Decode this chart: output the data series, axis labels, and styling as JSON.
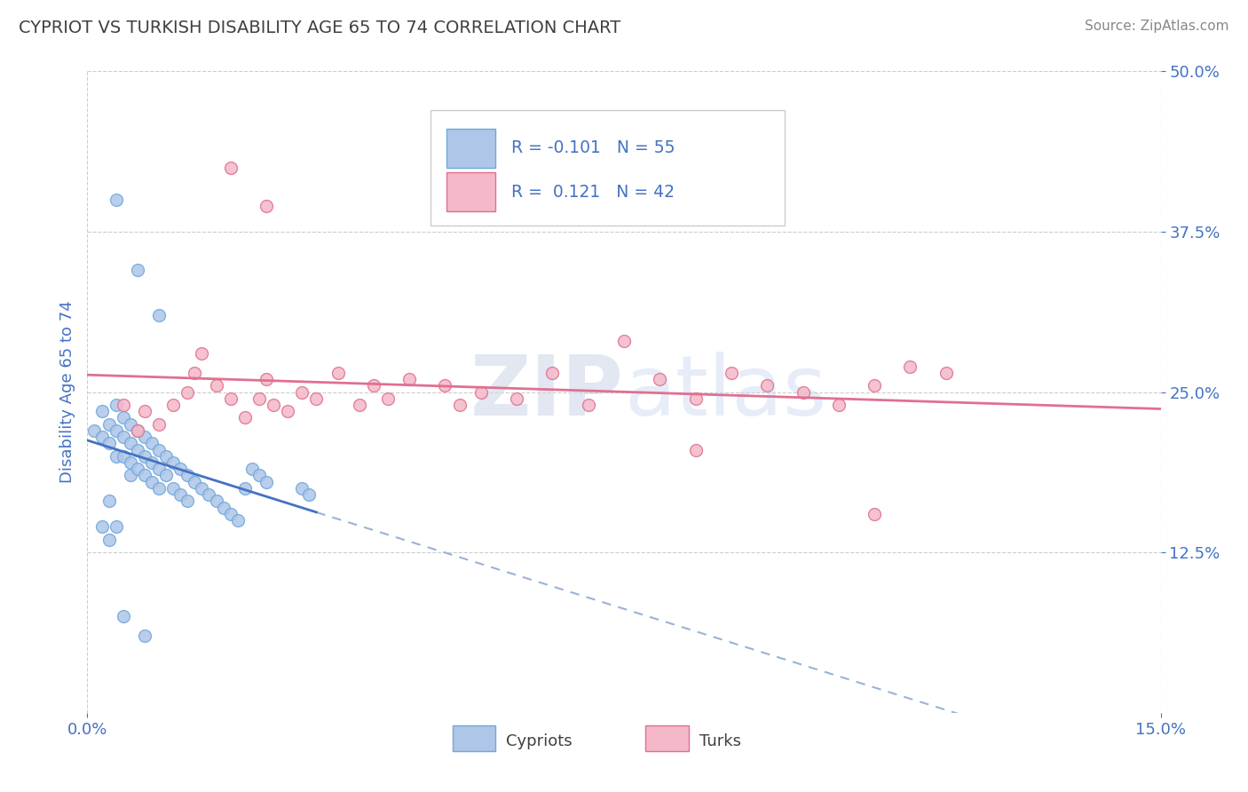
{
  "title": "CYPRIOT VS TURKISH DISABILITY AGE 65 TO 74 CORRELATION CHART",
  "source_text": "Source: ZipAtlas.com",
  "ylabel": "Disability Age 65 to 74",
  "xlim": [
    0.0,
    0.15
  ],
  "ylim": [
    0.0,
    0.5
  ],
  "cypriot_color": "#aec6e8",
  "cypriot_edge_color": "#6fa8dc",
  "turkish_color": "#f4b8c8",
  "turkish_edge_color": "#e07090",
  "cypriot_line_color": "#4472c4",
  "turkish_line_color": "#e07090",
  "dashed_line_color": "#9ab3d5",
  "background_color": "#ffffff",
  "grid_color": "#cccccc",
  "title_color": "#404040",
  "tick_color": "#4472c4",
  "watermark_color": "#d0d8e8",
  "cypriot_scatter": [
    [
      0.001,
      0.22
    ],
    [
      0.002,
      0.215
    ],
    [
      0.002,
      0.235
    ],
    [
      0.003,
      0.225
    ],
    [
      0.003,
      0.21
    ],
    [
      0.004,
      0.24
    ],
    [
      0.004,
      0.22
    ],
    [
      0.004,
      0.2
    ],
    [
      0.005,
      0.23
    ],
    [
      0.005,
      0.215
    ],
    [
      0.005,
      0.2
    ],
    [
      0.006,
      0.225
    ],
    [
      0.006,
      0.21
    ],
    [
      0.006,
      0.195
    ],
    [
      0.006,
      0.185
    ],
    [
      0.007,
      0.22
    ],
    [
      0.007,
      0.205
    ],
    [
      0.007,
      0.19
    ],
    [
      0.008,
      0.215
    ],
    [
      0.008,
      0.2
    ],
    [
      0.008,
      0.185
    ],
    [
      0.009,
      0.21
    ],
    [
      0.009,
      0.195
    ],
    [
      0.009,
      0.18
    ],
    [
      0.01,
      0.205
    ],
    [
      0.01,
      0.19
    ],
    [
      0.01,
      0.175
    ],
    [
      0.011,
      0.2
    ],
    [
      0.011,
      0.185
    ],
    [
      0.012,
      0.195
    ],
    [
      0.012,
      0.175
    ],
    [
      0.013,
      0.19
    ],
    [
      0.013,
      0.17
    ],
    [
      0.014,
      0.185
    ],
    [
      0.014,
      0.165
    ],
    [
      0.015,
      0.18
    ],
    [
      0.016,
      0.175
    ],
    [
      0.017,
      0.17
    ],
    [
      0.018,
      0.165
    ],
    [
      0.019,
      0.16
    ],
    [
      0.02,
      0.155
    ],
    [
      0.021,
      0.15
    ],
    [
      0.022,
      0.175
    ],
    [
      0.023,
      0.19
    ],
    [
      0.024,
      0.185
    ],
    [
      0.025,
      0.18
    ],
    [
      0.03,
      0.175
    ],
    [
      0.031,
      0.17
    ],
    [
      0.004,
      0.4
    ],
    [
      0.007,
      0.345
    ],
    [
      0.01,
      0.31
    ],
    [
      0.005,
      0.075
    ],
    [
      0.008,
      0.06
    ],
    [
      0.003,
      0.165
    ],
    [
      0.002,
      0.145
    ],
    [
      0.003,
      0.135
    ],
    [
      0.004,
      0.145
    ]
  ],
  "turkish_scatter": [
    [
      0.005,
      0.24
    ],
    [
      0.007,
      0.22
    ],
    [
      0.008,
      0.235
    ],
    [
      0.01,
      0.225
    ],
    [
      0.012,
      0.24
    ],
    [
      0.014,
      0.25
    ],
    [
      0.015,
      0.265
    ],
    [
      0.016,
      0.28
    ],
    [
      0.018,
      0.255
    ],
    [
      0.02,
      0.245
    ],
    [
      0.022,
      0.23
    ],
    [
      0.024,
      0.245
    ],
    [
      0.025,
      0.26
    ],
    [
      0.026,
      0.24
    ],
    [
      0.028,
      0.235
    ],
    [
      0.03,
      0.25
    ],
    [
      0.032,
      0.245
    ],
    [
      0.035,
      0.265
    ],
    [
      0.038,
      0.24
    ],
    [
      0.04,
      0.255
    ],
    [
      0.042,
      0.245
    ],
    [
      0.045,
      0.26
    ],
    [
      0.05,
      0.255
    ],
    [
      0.052,
      0.24
    ],
    [
      0.055,
      0.25
    ],
    [
      0.06,
      0.245
    ],
    [
      0.065,
      0.265
    ],
    [
      0.07,
      0.24
    ],
    [
      0.075,
      0.29
    ],
    [
      0.08,
      0.26
    ],
    [
      0.085,
      0.245
    ],
    [
      0.09,
      0.265
    ],
    [
      0.095,
      0.255
    ],
    [
      0.1,
      0.25
    ],
    [
      0.105,
      0.24
    ],
    [
      0.11,
      0.255
    ],
    [
      0.115,
      0.27
    ],
    [
      0.12,
      0.265
    ],
    [
      0.02,
      0.425
    ],
    [
      0.025,
      0.395
    ],
    [
      0.085,
      0.205
    ],
    [
      0.11,
      0.155
    ]
  ]
}
